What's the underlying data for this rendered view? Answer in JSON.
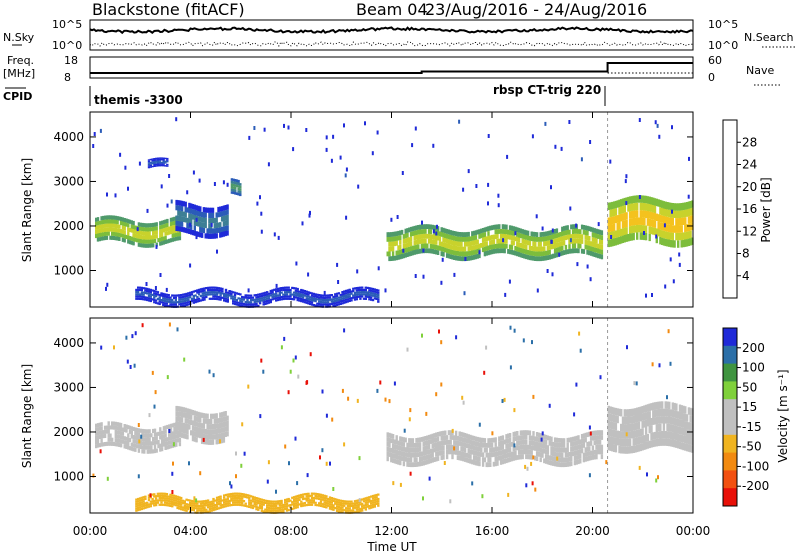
{
  "header": {
    "station": "Blackstone (fitACF)",
    "beam": "Beam 04",
    "dates": "23/Aug/2016 - 24/Aug/2016"
  },
  "nsky_panel": {
    "left_label": "N.Sky",
    "right_label": "N.Search",
    "left_ticks": [
      "10^5",
      "10^0"
    ],
    "right_ticks": [
      "10^5",
      "10^0"
    ]
  },
  "freq_panel": {
    "left_label_1": "Freq.",
    "left_label_2": "[MHz]",
    "right_label": "Nave",
    "left_ticks": [
      "18",
      "8"
    ],
    "right_ticks": [
      "60",
      "0"
    ]
  },
  "cpid_panel": {
    "label": "CPID",
    "program_1": "themis -3300",
    "program_2": "rbsp CT-trig 220"
  },
  "chart_data": [
    {
      "type": "heatmap",
      "name": "power",
      "ylabel": "Slant Range [km]",
      "yticks": [
        1000,
        2000,
        3000,
        4000
      ],
      "ylim": [
        180,
        4560
      ],
      "colorbar": {
        "label": "Power [dB]",
        "ticks": [
          "4",
          "8",
          "12",
          "16",
          "20",
          "24",
          "28"
        ],
        "range": [
          0,
          32
        ],
        "colors": [
          "#1f2ad8",
          "#2b5cb8",
          "#3d7f95",
          "#4f9a6b",
          "#7dbd3c",
          "#c8d22c",
          "#f4c21e",
          "#f7931a",
          "#f25a12",
          "#e0200c"
        ]
      },
      "echo_regions": [
        {
          "t": [
            0.2,
            3.6
          ],
          "range": [
            1600,
            2150
          ],
          "level": 18
        },
        {
          "t": [
            3.4,
            5.5
          ],
          "range": [
            1800,
            2500
          ],
          "level": 11
        },
        {
          "t": [
            2.3,
            3.1
          ],
          "range": [
            3250,
            3450
          ],
          "level": 7
        },
        {
          "t": [
            5.6,
            6.0
          ],
          "range": [
            2650,
            3000
          ],
          "level": 14
        },
        {
          "t": [
            1.8,
            11.5
          ],
          "range": [
            250,
            550
          ],
          "level": 8
        },
        {
          "t": [
            11.8,
            20.4
          ],
          "range": [
            1300,
            1950
          ],
          "level": 19
        },
        {
          "t": [
            20.6,
            24.0
          ],
          "range": [
            1600,
            2600
          ],
          "level": 24
        }
      ]
    },
    {
      "type": "heatmap",
      "name": "velocity",
      "ylabel": "Slant Range [km]",
      "yticks": [
        1000,
        2000,
        3000,
        4000
      ],
      "ylim": [
        180,
        4560
      ],
      "colorbar": {
        "label": "Velocity [m s⁻¹]",
        "ticks": [
          "200",
          "100",
          "50",
          "15",
          "-15",
          "-50",
          "-100",
          "-200"
        ],
        "colors": [
          "#1f2ad8",
          "#2b6fa8",
          "#3f9440",
          "#7fd03a",
          "#c0c0c0",
          "#c0c0c0",
          "#f0b420",
          "#f28a10",
          "#f25010",
          "#e81008"
        ]
      },
      "echo_regions": [
        {
          "t": [
            0.2,
            3.6
          ],
          "range": [
            1600,
            2150
          ],
          "velocity": -5
        },
        {
          "t": [
            3.4,
            5.5
          ],
          "range": [
            1800,
            2500
          ],
          "velocity": 5
        },
        {
          "t": [
            1.8,
            11.5
          ],
          "range": [
            250,
            550
          ],
          "velocity": -40
        },
        {
          "t": [
            11.8,
            20.4
          ],
          "range": [
            1300,
            1950
          ],
          "velocity": 0
        },
        {
          "t": [
            20.6,
            24.0
          ],
          "range": [
            1600,
            2600
          ],
          "velocity": 5
        }
      ]
    }
  ],
  "x_axis": {
    "label": "Time UT",
    "ticks": [
      "00:00",
      "04:00",
      "08:00",
      "12:00",
      "16:00",
      "20:00",
      "00:00"
    ],
    "range_hours": [
      0,
      24
    ]
  }
}
